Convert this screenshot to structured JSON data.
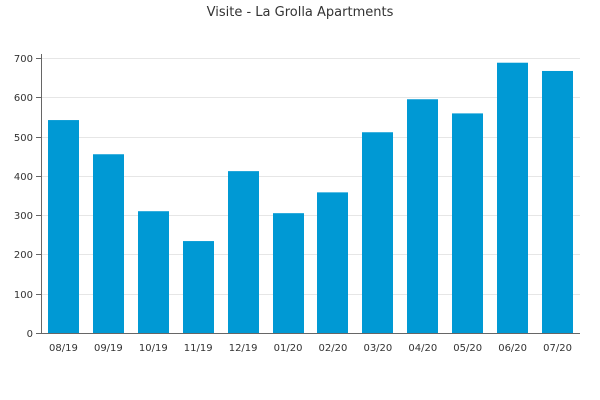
{
  "chart_data": {
    "type": "bar",
    "title": "Visite - La Grolla Apartments",
    "xlabel": "",
    "ylabel": "",
    "categories": [
      "08/19",
      "09/19",
      "10/19",
      "11/19",
      "12/19",
      "01/20",
      "02/20",
      "03/20",
      "04/20",
      "05/20",
      "06/20",
      "07/20"
    ],
    "values": [
      542,
      455,
      310,
      234,
      412,
      305,
      358,
      511,
      595,
      559,
      688,
      667
    ],
    "ylim": [
      0,
      700
    ],
    "yticks": [
      0,
      100,
      200,
      300,
      400,
      500,
      600,
      700
    ],
    "grid": true,
    "legend": "none",
    "colors": {
      "bar": "#0099d4",
      "grid": "#e6e6e6",
      "axis": "#666666",
      "text": "#333333"
    }
  }
}
